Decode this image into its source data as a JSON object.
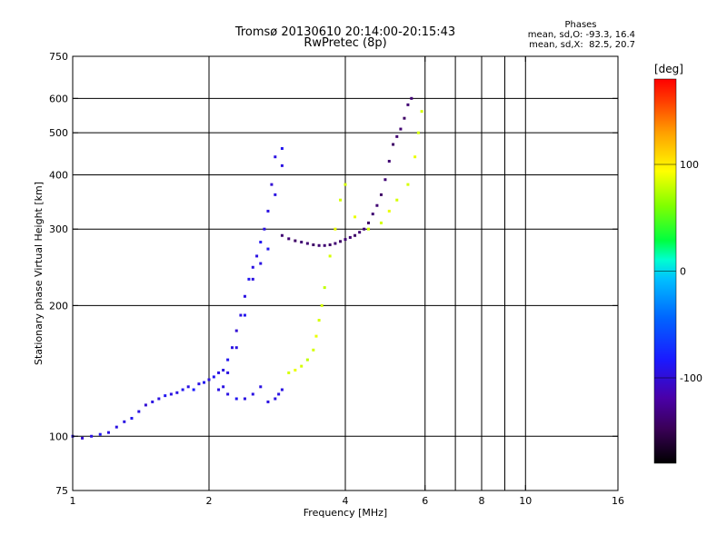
{
  "header": {
    "title_line1": "Tromsø 20130610 20:14:00-20:15:43",
    "title_line2": "RwPretec (8p)"
  },
  "phases": {
    "heading": "Phases",
    "o_line": "mean, sd,O: -93.3, 16.4",
    "x_line": "mean, sd,X:  82.5, 20.7"
  },
  "colorbar": {
    "unit_label": "[deg]",
    "ticks": [
      {
        "value": 100,
        "label": "100"
      },
      {
        "value": 0,
        "label": "0"
      },
      {
        "value": -100,
        "label": "-100"
      }
    ],
    "range": [
      -180,
      180
    ],
    "colormap": [
      "#000000",
      "#3a0057",
      "#4a00a8",
      "#1a1aff",
      "#0066ff",
      "#00c0ff",
      "#00ffd0",
      "#00ff40",
      "#80ff00",
      "#ffff00",
      "#ffa000",
      "#ff4000",
      "#ff0000"
    ]
  },
  "chart_data": {
    "type": "scatter",
    "xlabel": "Frequency [MHz]",
    "ylabel": "Stationary phase Virtual Height [km]",
    "xscale": "log",
    "yscale": "log",
    "xlim": [
      1,
      16
    ],
    "ylim": [
      75,
      750
    ],
    "x_ticks": [
      {
        "value": 1,
        "label": "1"
      },
      {
        "value": 2,
        "label": "2"
      },
      {
        "value": 4,
        "label": "4"
      },
      {
        "value": 6,
        "label": "6"
      },
      {
        "value": 8,
        "label": "8"
      },
      {
        "value": 10,
        "label": "10"
      },
      {
        "value": 16,
        "label": "16"
      }
    ],
    "x_grid": [
      2,
      4,
      6,
      7,
      8,
      9,
      10
    ],
    "y_ticks": [
      {
        "value": 75,
        "label": "75"
      },
      {
        "value": 100,
        "label": "100"
      },
      {
        "value": 200,
        "label": "200"
      },
      {
        "value": 300,
        "label": "300"
      },
      {
        "value": 400,
        "label": "400"
      },
      {
        "value": 500,
        "label": "500"
      },
      {
        "value": 600,
        "label": "600"
      },
      {
        "value": 750,
        "label": "750"
      }
    ],
    "y_grid": [
      100,
      200,
      300,
      400,
      500,
      600
    ],
    "grid": true,
    "color_by": "phase [deg]",
    "series": [
      {
        "points": [
          [
            1.0,
            100,
            -100
          ],
          [
            1.05,
            99,
            -105
          ],
          [
            1.1,
            100,
            -100
          ],
          [
            1.15,
            101,
            -95
          ],
          [
            1.2,
            102,
            -100
          ],
          [
            1.25,
            105,
            -100
          ],
          [
            1.3,
            108,
            -100
          ],
          [
            1.35,
            110,
            -95
          ],
          [
            1.4,
            114,
            -100
          ],
          [
            1.45,
            118,
            -105
          ],
          [
            1.5,
            120,
            -100
          ],
          [
            1.55,
            122,
            -100
          ],
          [
            1.6,
            124,
            -95
          ],
          [
            1.65,
            125,
            -100
          ],
          [
            1.7,
            126,
            -100
          ],
          [
            1.75,
            128,
            -95
          ],
          [
            1.8,
            130,
            -100
          ],
          [
            1.85,
            128,
            -90
          ],
          [
            1.9,
            132,
            -100
          ],
          [
            1.95,
            133,
            -95
          ],
          [
            2.0,
            135,
            -100
          ],
          [
            2.05,
            137,
            -95
          ],
          [
            2.1,
            140,
            -100
          ],
          [
            2.15,
            142,
            -100
          ],
          [
            2.2,
            150,
            -95
          ],
          [
            2.25,
            160,
            -100
          ],
          [
            2.3,
            175,
            -105
          ],
          [
            2.35,
            190,
            -100
          ],
          [
            2.4,
            210,
            -100
          ],
          [
            2.45,
            230,
            -95
          ],
          [
            2.5,
            245,
            -100
          ],
          [
            2.55,
            260,
            -100
          ],
          [
            2.6,
            280,
            -95
          ],
          [
            2.65,
            300,
            -100
          ],
          [
            2.7,
            330,
            -100
          ],
          [
            2.75,
            380,
            -105
          ],
          [
            2.8,
            440,
            -100
          ],
          [
            2.9,
            460,
            -95
          ],
          [
            2.9,
            420,
            -100
          ],
          [
            2.8,
            360,
            -100
          ],
          [
            2.7,
            270,
            -95
          ],
          [
            2.6,
            250,
            -100
          ],
          [
            2.5,
            230,
            -100
          ],
          [
            2.4,
            190,
            -95
          ],
          [
            2.3,
            160,
            -100
          ],
          [
            2.2,
            140,
            -100
          ],
          [
            2.15,
            130,
            -100
          ],
          [
            2.1,
            128,
            -100
          ],
          [
            2.2,
            125,
            -100
          ],
          [
            2.3,
            122,
            -95
          ],
          [
            2.4,
            122,
            -100
          ],
          [
            2.5,
            125,
            -100
          ],
          [
            2.6,
            130,
            -100
          ],
          [
            2.7,
            120,
            -100
          ],
          [
            2.8,
            122,
            -100
          ],
          [
            2.85,
            125,
            -100
          ],
          [
            2.9,
            128,
            -100
          ]
        ]
      },
      {
        "points": [
          [
            2.9,
            290,
            -140
          ],
          [
            3.0,
            285,
            -140
          ],
          [
            3.1,
            282,
            -145
          ],
          [
            3.2,
            280,
            -140
          ],
          [
            3.3,
            278,
            -140
          ],
          [
            3.4,
            276,
            -145
          ],
          [
            3.5,
            275,
            -140
          ],
          [
            3.6,
            275,
            -140
          ],
          [
            3.7,
            276,
            -145
          ],
          [
            3.8,
            278,
            -140
          ],
          [
            3.9,
            281,
            -145
          ],
          [
            4.0,
            284,
            -140
          ],
          [
            4.1,
            287,
            -140
          ],
          [
            4.2,
            290,
            -145
          ],
          [
            4.3,
            295,
            -140
          ],
          [
            4.4,
            300,
            -140
          ],
          [
            4.5,
            310,
            -145
          ],
          [
            4.6,
            325,
            -140
          ],
          [
            4.7,
            340,
            -140
          ],
          [
            4.8,
            360,
            -145
          ],
          [
            4.9,
            390,
            -140
          ],
          [
            5.0,
            430,
            -140
          ],
          [
            5.1,
            470,
            -145
          ],
          [
            5.2,
            490,
            -140
          ],
          [
            5.3,
            510,
            -140
          ],
          [
            5.4,
            540,
            -145
          ],
          [
            5.5,
            580,
            -140
          ],
          [
            5.6,
            600,
            -140
          ]
        ]
      },
      {
        "points": [
          [
            3.0,
            140,
            80
          ],
          [
            3.1,
            142,
            85
          ],
          [
            3.2,
            145,
            80
          ],
          [
            3.3,
            150,
            75
          ],
          [
            3.4,
            158,
            80
          ],
          [
            3.45,
            170,
            85
          ],
          [
            3.5,
            185,
            80
          ],
          [
            3.55,
            200,
            80
          ],
          [
            3.6,
            220,
            75
          ],
          [
            3.7,
            260,
            80
          ],
          [
            3.8,
            300,
            85
          ],
          [
            3.9,
            350,
            80
          ],
          [
            4.0,
            380,
            80
          ],
          [
            4.2,
            320,
            85
          ],
          [
            4.5,
            300,
            80
          ],
          [
            4.8,
            310,
            80
          ],
          [
            5.0,
            330,
            85
          ],
          [
            5.2,
            350,
            80
          ],
          [
            5.5,
            380,
            80
          ],
          [
            5.7,
            440,
            85
          ],
          [
            5.8,
            500,
            80
          ],
          [
            5.9,
            560,
            80
          ]
        ]
      }
    ]
  }
}
